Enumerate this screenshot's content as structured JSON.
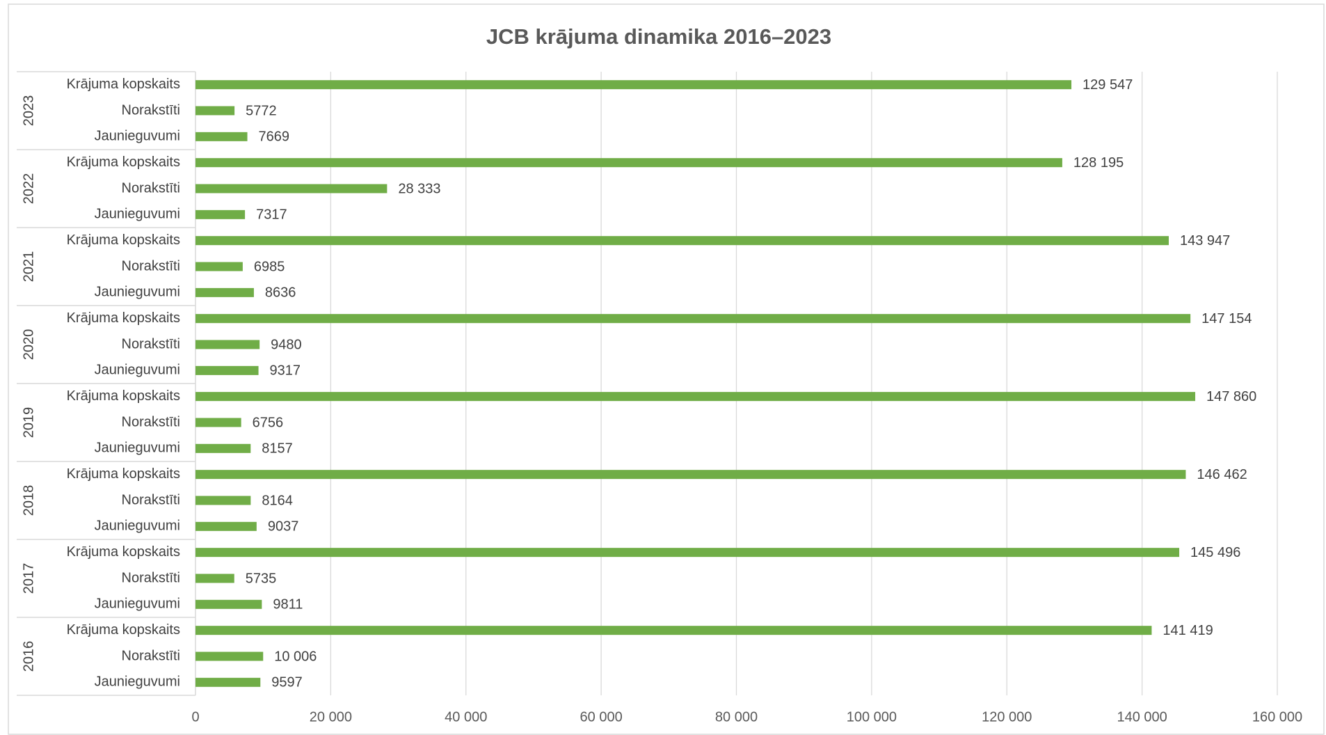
{
  "chart_data": {
    "type": "bar",
    "orientation": "horizontal",
    "title": "JCB krājuma dinamika 2016–2023",
    "color": "#70ad47",
    "grid": true,
    "xlim": [
      0,
      160000
    ],
    "xticks": [
      0,
      {
        "value": 20000,
        "label": "20 000"
      },
      {
        "value": 40000,
        "label": "40 000"
      },
      {
        "value": 60000,
        "label": "60 000"
      },
      {
        "value": 80000,
        "label": "80 000"
      },
      {
        "value": 100000,
        "label": "100 000"
      },
      {
        "value": 120000,
        "label": "120 000"
      },
      {
        "value": 140000,
        "label": "140 000"
      },
      {
        "value": 160000,
        "label": "160 000"
      }
    ],
    "groups": [
      {
        "name": "2023",
        "categories": [
          "Krājuma kopskaits",
          "Norakstīti",
          "Jaunieguvumi"
        ],
        "values": [
          129547,
          5772,
          7669
        ],
        "value_labels": [
          "129 547",
          "5772",
          "7669"
        ]
      },
      {
        "name": "2022",
        "categories": [
          "Krājuma kopskaits",
          "Norakstīti",
          "Jaunieguvumi"
        ],
        "values": [
          128195,
          28333,
          7317
        ],
        "value_labels": [
          "128 195",
          "28 333",
          "7317"
        ]
      },
      {
        "name": "2021",
        "categories": [
          "Krājuma kopskaits",
          "Norakstīti",
          "Jaunieguvumi"
        ],
        "values": [
          143947,
          6985,
          8636
        ],
        "value_labels": [
          "143 947",
          "6985",
          "8636"
        ]
      },
      {
        "name": "2020",
        "categories": [
          "Krājuma kopskaits",
          "Norakstīti",
          "Jaunieguvumi"
        ],
        "values": [
          147154,
          9480,
          9317
        ],
        "value_labels": [
          "147 154",
          "9480",
          "9317"
        ]
      },
      {
        "name": "2019",
        "categories": [
          "Krājuma kopskaits",
          "Norakstīti",
          "Jaunieguvumi"
        ],
        "values": [
          147860,
          6756,
          8157
        ],
        "value_labels": [
          "147 860",
          "6756",
          "8157"
        ]
      },
      {
        "name": "2018",
        "categories": [
          "Krājuma kopskaits",
          "Norakstīti",
          "Jaunieguvumi"
        ],
        "values": [
          146462,
          8164,
          9037
        ],
        "value_labels": [
          "146 462",
          "8164",
          "9037"
        ]
      },
      {
        "name": "2017",
        "categories": [
          "Krājuma kopskaits",
          "Norakstīti",
          "Jaunieguvumi"
        ],
        "values": [
          145496,
          5735,
          9811
        ],
        "value_labels": [
          "145 496",
          "5735",
          "9811"
        ]
      },
      {
        "name": "2016",
        "categories": [
          "Krājuma kopskaits",
          "Norakstīti",
          "Jaunieguvumi"
        ],
        "values": [
          141419,
          10006,
          9597
        ],
        "value_labels": [
          "141 419",
          "10 006",
          "9597"
        ]
      }
    ]
  }
}
